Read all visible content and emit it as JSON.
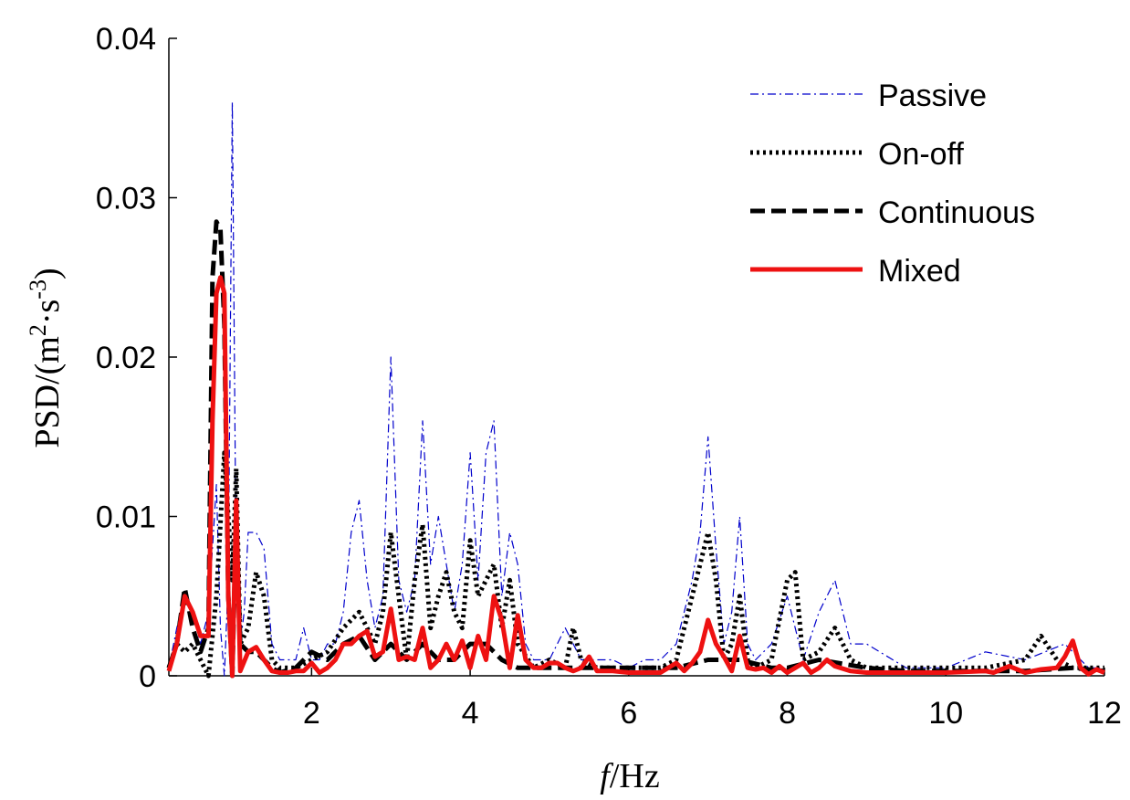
{
  "chart_data": {
    "type": "line",
    "xlabel_italic": "f",
    "xlabel_rest": "/Hz",
    "ylabel_prefix": "PSD/(m",
    "ylabel_sup1": "2",
    "ylabel_mid": "·s",
    "ylabel_sup2": "-3",
    "ylabel_suffix": ")",
    "xlim": [
      0.2,
      12
    ],
    "ylim": [
      0,
      0.04
    ],
    "xticks": [
      2,
      4,
      6,
      8,
      10,
      12
    ],
    "xtick_labels": [
      "2",
      "4",
      "6",
      "8",
      "10",
      "12"
    ],
    "yticks": [
      0,
      0.01,
      0.02,
      0.03,
      0.04
    ],
    "ytick_labels": [
      "0",
      "0.01",
      "0.02",
      "0.03",
      "0.04"
    ],
    "grid": false,
    "legend_position": "top-right",
    "series": [
      {
        "name": "Passive",
        "color": "#0000cc",
        "style": "dashdot",
        "x": [
          0.2,
          0.3,
          0.4,
          0.5,
          0.6,
          0.7,
          0.8,
          0.85,
          0.9,
          0.95,
          1.0,
          1.05,
          1.1,
          1.15,
          1.2,
          1.3,
          1.4,
          1.5,
          1.6,
          1.7,
          1.8,
          1.9,
          2.0,
          2.1,
          2.2,
          2.3,
          2.4,
          2.5,
          2.6,
          2.7,
          2.8,
          2.9,
          3.0,
          3.1,
          3.2,
          3.3,
          3.4,
          3.5,
          3.6,
          3.7,
          3.8,
          3.9,
          4.0,
          4.1,
          4.2,
          4.3,
          4.4,
          4.5,
          4.6,
          4.7,
          4.8,
          5.0,
          5.2,
          5.4,
          5.6,
          5.8,
          6.0,
          6.2,
          6.4,
          6.6,
          6.8,
          6.9,
          7.0,
          7.1,
          7.2,
          7.3,
          7.4,
          7.5,
          7.6,
          7.8,
          8.0,
          8.2,
          8.4,
          8.6,
          8.8,
          9.0,
          9.5,
          10.0,
          10.5,
          11.0,
          11.5,
          11.8,
          12.0
        ],
        "y": [
          0.0005,
          0.003,
          0.005,
          0.004,
          0.002,
          0.004,
          0.012,
          0.003,
          0.0,
          0.006,
          0.036,
          0.006,
          0.002,
          0.004,
          0.009,
          0.009,
          0.008,
          0.002,
          0.001,
          0.001,
          0.001,
          0.003,
          0.001,
          0.001,
          0.002,
          0.002,
          0.004,
          0.009,
          0.011,
          0.006,
          0.003,
          0.005,
          0.02,
          0.006,
          0.004,
          0.006,
          0.016,
          0.007,
          0.01,
          0.007,
          0.004,
          0.007,
          0.014,
          0.006,
          0.014,
          0.016,
          0.005,
          0.009,
          0.007,
          0.002,
          0.001,
          0.001,
          0.003,
          0.001,
          0.001,
          0.001,
          0.0005,
          0.001,
          0.001,
          0.002,
          0.006,
          0.009,
          0.015,
          0.008,
          0.002,
          0.004,
          0.01,
          0.002,
          0.001,
          0.002,
          0.005,
          0.001,
          0.004,
          0.006,
          0.002,
          0.002,
          0.0005,
          0.0005,
          0.0015,
          0.001,
          0.002,
          0.0005,
          0.0005
        ]
      },
      {
        "name": "On-off",
        "color": "#000000",
        "style": "dotted",
        "x": [
          0.2,
          0.3,
          0.4,
          0.5,
          0.6,
          0.7,
          0.8,
          0.9,
          1.0,
          1.05,
          1.1,
          1.2,
          1.3,
          1.4,
          1.5,
          1.6,
          1.8,
          2.0,
          2.2,
          2.4,
          2.6,
          2.7,
          2.8,
          2.9,
          3.0,
          3.1,
          3.2,
          3.3,
          3.4,
          3.5,
          3.6,
          3.7,
          3.8,
          3.9,
          4.0,
          4.1,
          4.2,
          4.3,
          4.4,
          4.5,
          4.6,
          4.8,
          5.0,
          5.2,
          5.3,
          5.4,
          5.6,
          5.8,
          6.0,
          6.4,
          6.6,
          6.8,
          6.9,
          7.0,
          7.1,
          7.2,
          7.3,
          7.4,
          7.5,
          7.6,
          7.8,
          8.0,
          8.1,
          8.2,
          8.4,
          8.6,
          8.8,
          9.0,
          9.5,
          10.0,
          10.5,
          11.0,
          11.2,
          11.4,
          11.6,
          11.8,
          12.0
        ],
        "y": [
          0.0005,
          0.002,
          0.0015,
          0.002,
          0.001,
          0.0,
          0.005,
          0.014,
          0.006,
          0.013,
          0.002,
          0.003,
          0.0065,
          0.005,
          0.001,
          0.0005,
          0.0005,
          0.001,
          0.0015,
          0.003,
          0.004,
          0.003,
          0.002,
          0.004,
          0.009,
          0.005,
          0.001,
          0.006,
          0.0095,
          0.003,
          0.005,
          0.0065,
          0.004,
          0.003,
          0.0085,
          0.005,
          0.006,
          0.007,
          0.003,
          0.006,
          0.002,
          0.0005,
          0.001,
          0.0005,
          0.003,
          0.001,
          0.0005,
          0.0005,
          0.0005,
          0.0005,
          0.001,
          0.005,
          0.007,
          0.009,
          0.006,
          0.001,
          0.002,
          0.005,
          0.001,
          0.0005,
          0.001,
          0.006,
          0.0065,
          0.001,
          0.0015,
          0.003,
          0.001,
          0.0005,
          0.0005,
          0.0005,
          0.0005,
          0.001,
          0.0025,
          0.001,
          0.0005,
          0.0005,
          0.0005
        ]
      },
      {
        "name": "Continuous",
        "color": "#000000",
        "style": "dashed",
        "x": [
          0.2,
          0.3,
          0.4,
          0.5,
          0.6,
          0.7,
          0.75,
          0.8,
          0.85,
          0.9,
          0.95,
          1.0,
          1.05,
          1.1,
          1.2,
          1.3,
          1.4,
          1.5,
          1.6,
          1.8,
          2.0,
          2.2,
          2.4,
          2.6,
          2.8,
          3.0,
          3.2,
          3.4,
          3.6,
          3.8,
          4.0,
          4.2,
          4.4,
          4.6,
          4.8,
          5.0,
          5.4,
          6.0,
          6.6,
          7.0,
          7.4,
          7.8,
          8.0,
          8.4,
          9.0,
          9.5,
          10.0,
          10.6,
          11.0,
          11.6,
          12.0
        ],
        "y": [
          0.0005,
          0.002,
          0.0055,
          0.003,
          0.0015,
          0.003,
          0.025,
          0.0285,
          0.028,
          0.022,
          0.005,
          0.0,
          0.01,
          0.002,
          0.0015,
          0.0015,
          0.001,
          0.0005,
          0.0002,
          0.0005,
          0.0015,
          0.001,
          0.002,
          0.0025,
          0.001,
          0.002,
          0.001,
          0.002,
          0.001,
          0.001,
          0.002,
          0.002,
          0.001,
          0.0005,
          0.0005,
          0.0005,
          0.0005,
          0.0005,
          0.0005,
          0.001,
          0.001,
          0.0005,
          0.0005,
          0.001,
          0.0005,
          0.0003,
          0.0003,
          0.0003,
          0.0003,
          0.0005,
          0.0003
        ]
      },
      {
        "name": "Mixed",
        "color": "#ee1111",
        "style": "solid",
        "x": [
          0.2,
          0.3,
          0.4,
          0.5,
          0.6,
          0.7,
          0.75,
          0.8,
          0.85,
          0.9,
          0.95,
          1.0,
          1.05,
          1.1,
          1.2,
          1.3,
          1.4,
          1.5,
          1.6,
          1.7,
          1.8,
          1.9,
          2.0,
          2.1,
          2.2,
          2.3,
          2.4,
          2.5,
          2.6,
          2.7,
          2.8,
          2.9,
          3.0,
          3.1,
          3.2,
          3.3,
          3.4,
          3.5,
          3.6,
          3.7,
          3.8,
          3.9,
          4.0,
          4.1,
          4.2,
          4.3,
          4.4,
          4.5,
          4.6,
          4.7,
          4.8,
          4.9,
          5.0,
          5.1,
          5.2,
          5.3,
          5.4,
          5.5,
          5.6,
          5.8,
          6.0,
          6.2,
          6.4,
          6.6,
          6.7,
          6.8,
          6.9,
          7.0,
          7.1,
          7.2,
          7.3,
          7.4,
          7.5,
          7.6,
          7.7,
          7.8,
          7.9,
          8.0,
          8.1,
          8.2,
          8.3,
          8.4,
          8.5,
          8.6,
          8.8,
          9.0,
          9.5,
          10.0,
          10.5,
          10.6,
          10.8,
          11.0,
          11.2,
          11.4,
          11.5,
          11.6,
          11.7,
          11.8,
          11.9,
          12.0
        ],
        "y": [
          0.0003,
          0.002,
          0.005,
          0.004,
          0.0025,
          0.0025,
          0.016,
          0.024,
          0.025,
          0.024,
          0.005,
          0.0,
          0.011,
          0.0003,
          0.0015,
          0.0018,
          0.001,
          0.0003,
          0.0002,
          0.0002,
          0.0003,
          0.0003,
          0.0008,
          0.0002,
          0.0005,
          0.001,
          0.002,
          0.002,
          0.0025,
          0.0028,
          0.0012,
          0.0015,
          0.0042,
          0.001,
          0.0012,
          0.001,
          0.003,
          0.0005,
          0.001,
          0.002,
          0.001,
          0.0022,
          0.0005,
          0.0025,
          0.001,
          0.005,
          0.0035,
          0.0005,
          0.0038,
          0.001,
          0.0005,
          0.0005,
          0.0008,
          0.0008,
          0.0005,
          0.0003,
          0.0005,
          0.0012,
          0.0003,
          0.0003,
          0.0002,
          0.0002,
          0.0002,
          0.0008,
          0.0003,
          0.0008,
          0.0015,
          0.0035,
          0.002,
          0.0012,
          0.0003,
          0.0025,
          0.0005,
          0.0004,
          0.0005,
          0.0002,
          0.0006,
          0.0002,
          0.0005,
          0.0008,
          0.0002,
          0.0005,
          0.001,
          0.0006,
          0.0003,
          0.0002,
          0.0002,
          0.0002,
          0.0003,
          0.0002,
          0.0006,
          0.0002,
          0.0004,
          0.0005,
          0.0012,
          0.0022,
          0.0005,
          0.0001,
          0.0004,
          0.0002
        ]
      }
    ]
  }
}
